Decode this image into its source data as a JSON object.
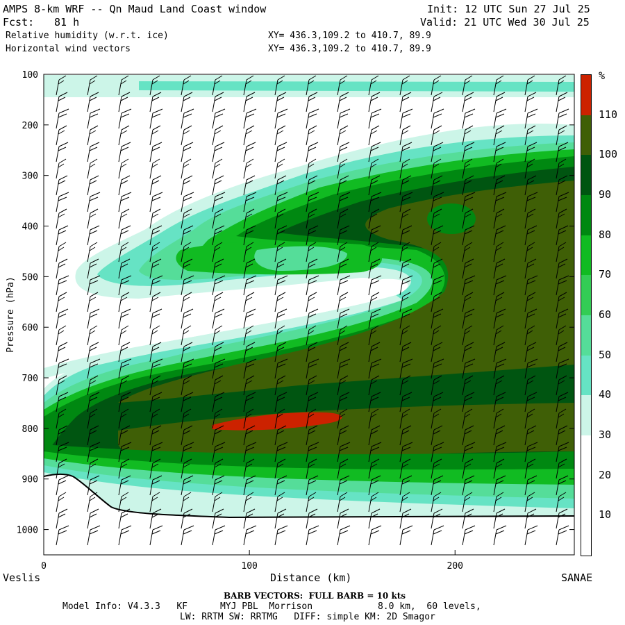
{
  "header": {
    "title": "AMPS 8-km WRF -- Qn Maud Land Coast window",
    "fcst_label": "Fcst:",
    "fcst_value": "81 h",
    "init": "Init: 12 UTC Sun 27 Jul 25",
    "valid": "Valid: 21 UTC Wed 30 Jul 25",
    "field1": "Relative humidity (w.r.t. ice)",
    "field2": "Horizontal wind vectors",
    "xy1": "XY= 436.3,109.2 to 410.7, 89.9",
    "xy2": "XY= 436.3,109.2 to 410.7, 89.9"
  },
  "footer": {
    "barb": "BARB VECTORS:  FULL BARB = 10 kts",
    "model1": "Model Info: V4.3.3   KF      MYJ PBL  Morrison            8.0 km,  60 levels,",
    "model2": "LW: RRTM SW: RRTMG   DIFF: simple KM: 2D Smagor"
  },
  "colorbar": {
    "unit": "%",
    "levels": [
      10,
      20,
      30,
      40,
      50,
      60,
      70,
      80,
      90,
      100,
      110
    ],
    "colors": [
      "#ffffff",
      "#ffffff",
      "#ffffff",
      "#ccf5e8",
      "#66e3c4",
      "#55dd99",
      "#33cc55",
      "#11bb22",
      "#008811",
      "#005511",
      "#3f5f06",
      "#cc2200"
    ]
  },
  "chart_data": {
    "type": "heatmap",
    "title": "Relative humidity (w.r.t. ice)",
    "xlabel": "Distance (km)",
    "ylabel": "Pressure (hPa)",
    "x_ticks": [
      0,
      100,
      200
    ],
    "y_ticks": [
      100,
      200,
      300,
      400,
      500,
      600,
      700,
      800,
      900,
      1000
    ],
    "xlim": [
      0,
      258
    ],
    "ylim": [
      1050,
      100
    ],
    "left_endpoint": "Veslis",
    "right_endpoint": "SANAE"
  }
}
